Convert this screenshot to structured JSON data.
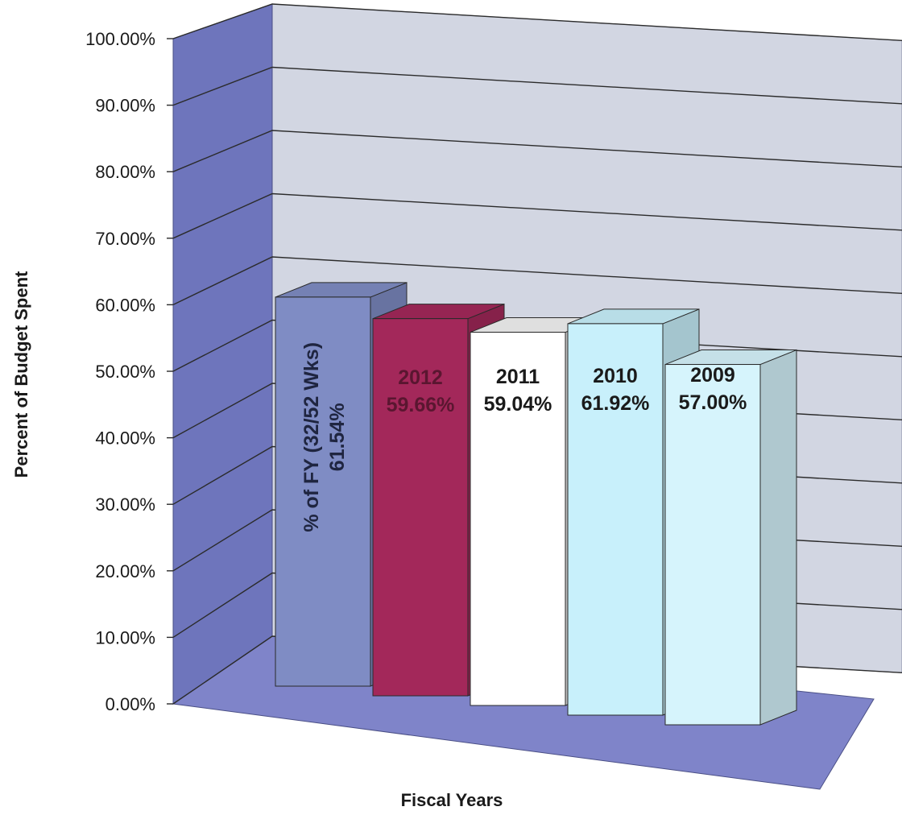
{
  "chart_data": {
    "type": "bar",
    "xlabel": "Fiscal Years",
    "ylabel": "Percent of Budget Spent",
    "ylim": [
      0,
      100
    ],
    "yticks": [
      "0.00%",
      "10.00%",
      "20.00%",
      "30.00%",
      "40.00%",
      "50.00%",
      "60.00%",
      "70.00%",
      "80.00%",
      "90.00%",
      "100.00%"
    ],
    "grid": true,
    "three_d": true,
    "bars": [
      {
        "label_line1": "% of FY (32/52 Wks)",
        "label_line2": "61.54%",
        "value": 61.54,
        "color": "#7f8cc4",
        "text_color": "#1f2540"
      },
      {
        "label_line1": "2012",
        "label_line2": "59.66%",
        "value": 59.66,
        "color": "#a3285a",
        "text_color": "#5a1630"
      },
      {
        "label_line1": "2011",
        "label_line2": "59.04%",
        "value": 59.04,
        "color": "#ffffff",
        "text_color": "#1a1a1a"
      },
      {
        "label_line1": "2010",
        "label_line2": "61.92%",
        "value": 61.92,
        "color": "#c8f0fb",
        "text_color": "#1a1a1a"
      },
      {
        "label_line1": "2009",
        "label_line2": "57.00%",
        "value": 57.0,
        "color": "#d6f4fc",
        "text_color": "#1a1a1a"
      }
    ],
    "colors": {
      "wall_back": "#d2d6e2",
      "wall_side": "#6e75bc",
      "floor": "#7f84c9",
      "gridline": "#2b2b2b"
    }
  }
}
